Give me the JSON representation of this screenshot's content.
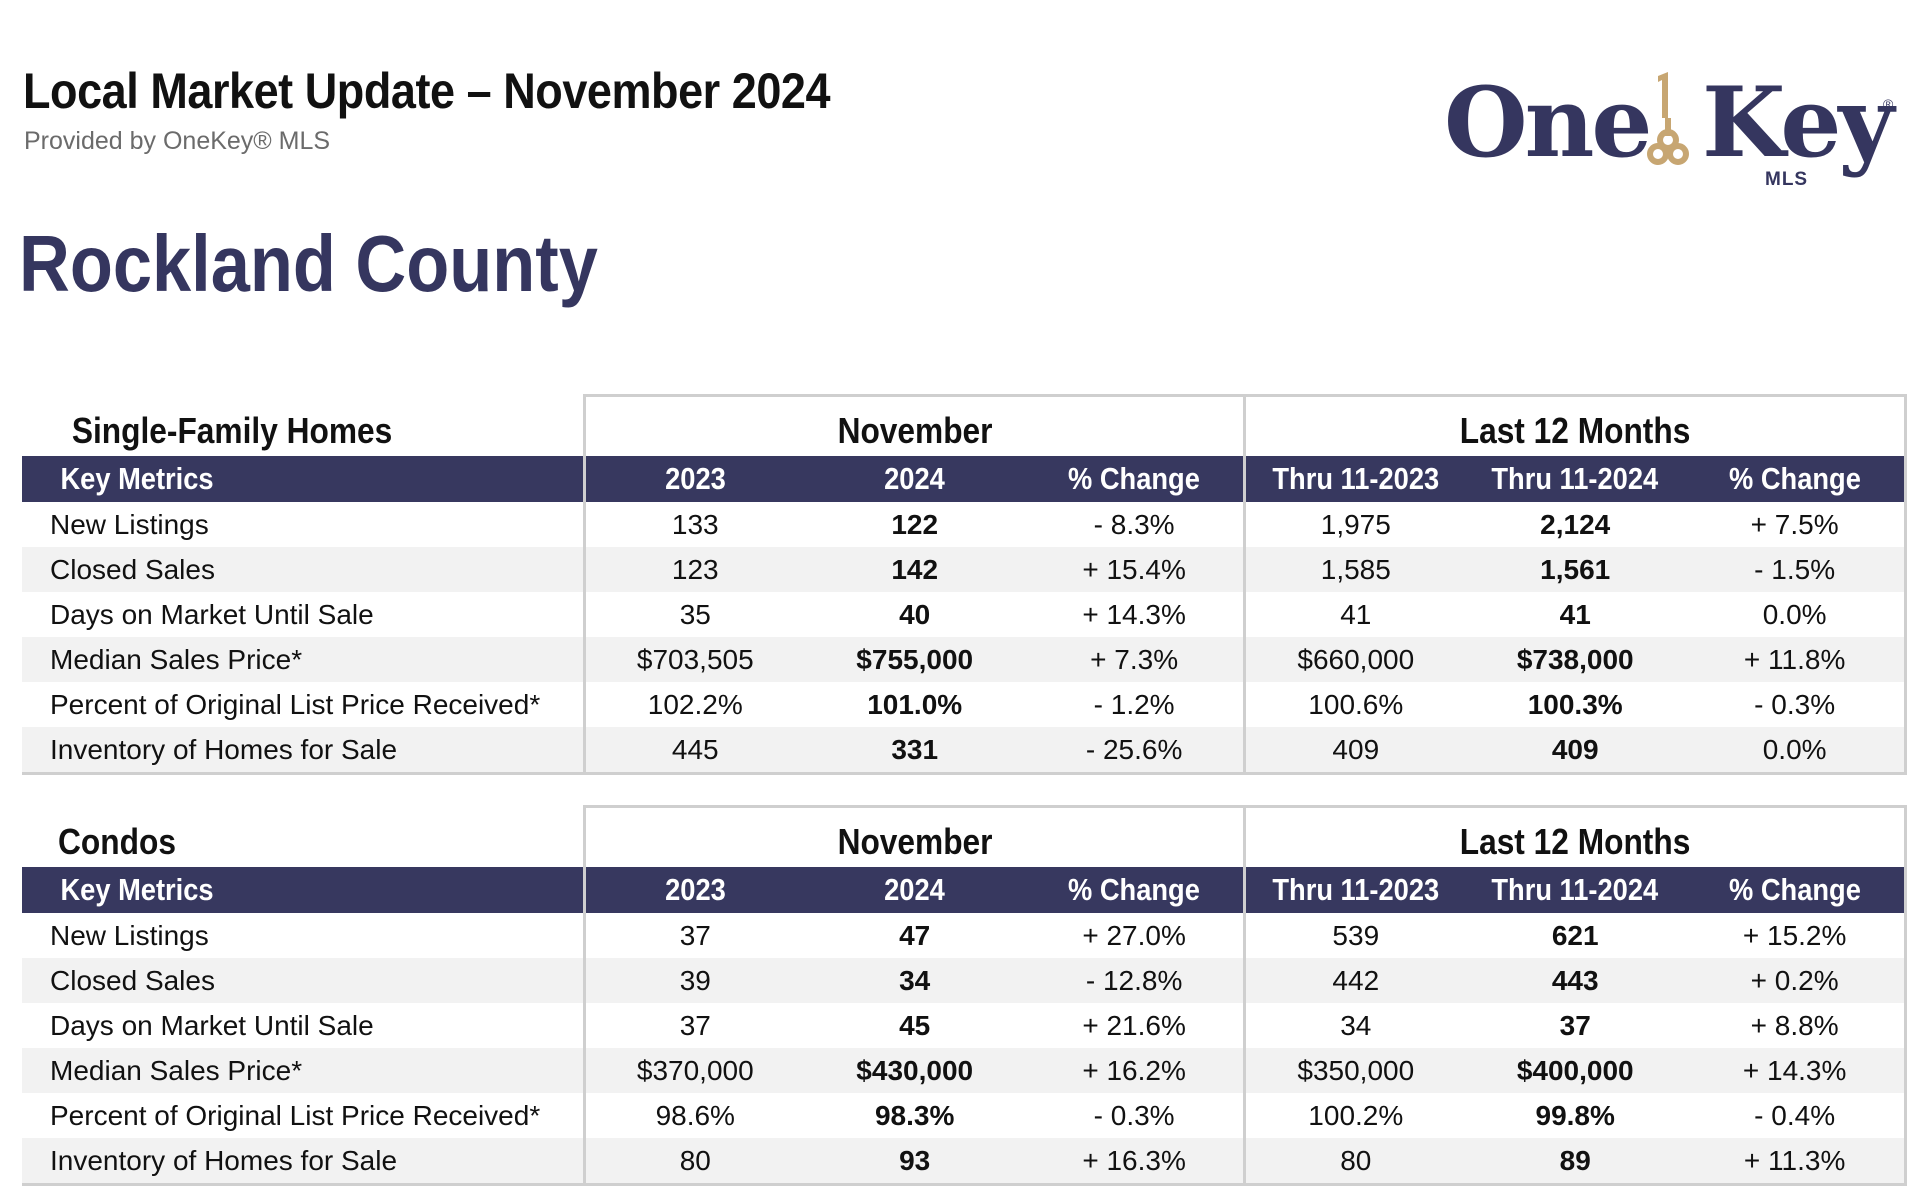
{
  "header": {
    "title": "Local Market Update – November 2024",
    "subtitle": "Provided by OneKey® MLS"
  },
  "logo": {
    "word1": "One",
    "word2": "Key",
    "sub": "MLS",
    "reg": "®",
    "colors": {
      "text": "#35365f",
      "key": "#c7a672"
    }
  },
  "county": "Rockland County",
  "tables": [
    {
      "section_title": "Single-Family Homes",
      "group_november": "November",
      "group_last12": "Last 12 Months",
      "columns": [
        "Key Metrics",
        "2023",
        "2024",
        "% Change",
        "Thru 11-2023",
        "Thru 11-2024",
        "% Change"
      ],
      "rows": [
        [
          "New Listings",
          "133",
          "122",
          "- 8.3%",
          "1,975",
          "2,124",
          "+ 7.5%"
        ],
        [
          "Closed Sales",
          "123",
          "142",
          "+ 15.4%",
          "1,585",
          "1,561",
          "- 1.5%"
        ],
        [
          "Days on Market Until Sale",
          "35",
          "40",
          "+ 14.3%",
          "41",
          "41",
          "0.0%"
        ],
        [
          "Median Sales Price*",
          "$703,505",
          "$755,000",
          "+ 7.3%",
          "$660,000",
          "$738,000",
          "+ 11.8%"
        ],
        [
          "Percent of Original List Price Received*",
          "102.2%",
          "101.0%",
          "- 1.2%",
          "100.6%",
          "100.3%",
          "- 0.3%"
        ],
        [
          "Inventory of Homes for Sale",
          "445",
          "331",
          "- 25.6%",
          "409",
          "409",
          "0.0%"
        ]
      ]
    },
    {
      "section_title": "Condos",
      "group_november": "November",
      "group_last12": "Last 12 Months",
      "columns": [
        "Key Metrics",
        "2023",
        "2024",
        "% Change",
        "Thru 11-2023",
        "Thru 11-2024",
        "% Change"
      ],
      "rows": [
        [
          "New Listings",
          "37",
          "47",
          "+ 27.0%",
          "539",
          "621",
          "+ 15.2%"
        ],
        [
          "Closed Sales",
          "39",
          "34",
          "- 12.8%",
          "442",
          "443",
          "+ 0.2%"
        ],
        [
          "Days on Market Until Sale",
          "37",
          "45",
          "+ 21.6%",
          "34",
          "37",
          "+ 8.8%"
        ],
        [
          "Median Sales Price*",
          "$370,000",
          "$430,000",
          "+ 16.2%",
          "$350,000",
          "$400,000",
          "+ 14.3%"
        ],
        [
          "Percent of Original List Price Received*",
          "98.6%",
          "98.3%",
          "- 0.3%",
          "100.2%",
          "99.8%",
          "- 0.4%"
        ],
        [
          "Inventory of Homes for Sale",
          "80",
          "93",
          "+ 16.3%",
          "80",
          "89",
          "+ 11.3%"
        ]
      ]
    }
  ],
  "colors": {
    "header_band": "#37385f",
    "county_title": "#35365f",
    "row_stripe": "#f2f2f2",
    "border": "#cfcfcf"
  }
}
